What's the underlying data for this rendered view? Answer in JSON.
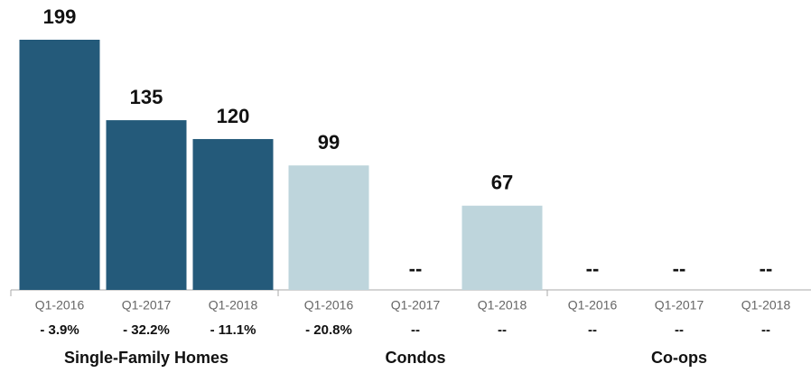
{
  "chart_data": {
    "type": "bar",
    "groups": [
      {
        "name": "Single-Family Homes",
        "color": "#245a7a",
        "categories": [
          "Q1-2016",
          "Q1-2017",
          "Q1-2018"
        ],
        "values": [
          199,
          135,
          120
        ],
        "value_labels": [
          "199",
          "135",
          "120"
        ],
        "changes": [
          "- 3.9%",
          "- 32.2%",
          "- 11.1%"
        ]
      },
      {
        "name": "Condos",
        "color": "#bed5dc",
        "categories": [
          "Q1-2016",
          "Q1-2017",
          "Q1-2018"
        ],
        "values": [
          99,
          null,
          67
        ],
        "value_labels": [
          "99",
          "--",
          "67"
        ],
        "changes": [
          "- 20.8%",
          "--",
          "--"
        ]
      },
      {
        "name": "Co-ops",
        "color": "#bed5dc",
        "categories": [
          "Q1-2016",
          "Q1-2017",
          "Q1-2018"
        ],
        "values": [
          null,
          null,
          null
        ],
        "value_labels": [
          "--",
          "--",
          "--"
        ],
        "changes": [
          "--",
          "--",
          "--"
        ]
      }
    ]
  }
}
